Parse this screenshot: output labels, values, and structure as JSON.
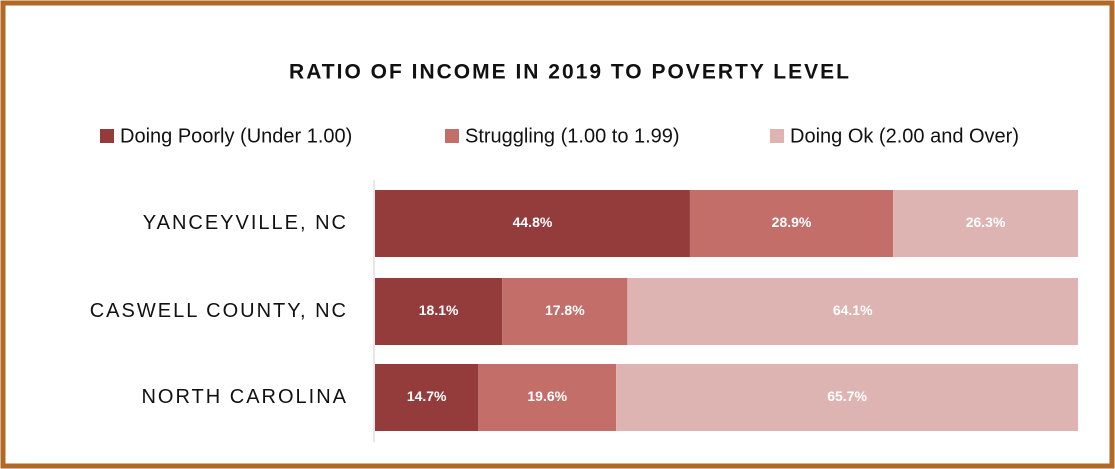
{
  "chart_data": {
    "type": "stacked_bar_horizontal",
    "title": "RATIO OF INCOME IN 2019 TO POVERTY LEVEL",
    "categories": [
      "YANCEYVILLE, NC",
      "CASWELL COUNTY, NC",
      "NORTH CAROLINA"
    ],
    "xlim": [
      0,
      100
    ],
    "series": [
      {
        "name": "Doing Poorly (Under 1.00)",
        "color": "#943c3c",
        "values": [
          44.8,
          18.1,
          14.7
        ],
        "value_labels": [
          "44.8%",
          "18.1%",
          "14.7%"
        ]
      },
      {
        "name": "Struggling (1.00 to 1.99)",
        "color": "#c46e6a",
        "values": [
          28.9,
          17.8,
          19.6
        ],
        "value_labels": [
          "28.9%",
          "17.8%",
          "19.6%"
        ]
      },
      {
        "name": "Doing Ok (2.00 and Over)",
        "color": "#deb4b3",
        "values": [
          26.3,
          64.1,
          65.7
        ],
        "value_labels": [
          "26.3%",
          "64.1%",
          "65.7%"
        ]
      }
    ]
  }
}
